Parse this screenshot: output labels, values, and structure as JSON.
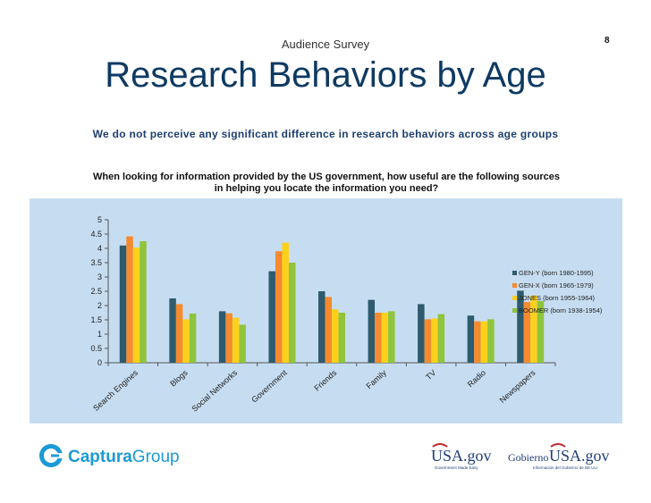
{
  "page_number": "8",
  "kicker": "Audience Survey",
  "title": "Research Behaviors by Age",
  "subtitle": "We do not perceive any significant difference in research behaviors across age groups",
  "question_line1": "When looking for information provided by the US government, how useful are the following sources",
  "question_line2": "in helping you locate the information you need?",
  "chart_data": {
    "type": "bar",
    "categories": [
      "Search Engines",
      "Blogs",
      "Social Networks",
      "Government",
      "Friends",
      "Family",
      "TV",
      "Radio",
      "Newspapers"
    ],
    "series": [
      {
        "name": "GEN-Y (born 1980-1995)",
        "color": "#2e5b6e",
        "values": [
          4.1,
          2.25,
          1.8,
          3.2,
          2.5,
          2.2,
          2.05,
          1.65,
          2.52
        ]
      },
      {
        "name": "GEN-X (born 1965-1979)",
        "color": "#f58a2e",
        "values": [
          4.42,
          2.05,
          1.73,
          3.9,
          2.3,
          1.75,
          1.52,
          1.45,
          2.12
        ]
      },
      {
        "name": "JONES (born 1955-1964)",
        "color": "#fcd11c",
        "values": [
          4.03,
          1.52,
          1.57,
          4.2,
          1.87,
          1.75,
          1.55,
          1.45,
          2.35
        ]
      },
      {
        "name": "BOOMER (born 1938-1954)",
        "color": "#8fc43c",
        "values": [
          4.25,
          1.72,
          1.33,
          3.5,
          1.75,
          1.8,
          1.7,
          1.52,
          2.16
        ]
      }
    ],
    "y_ticks": [
      "0",
      "0.5",
      "1",
      "1.5",
      "2",
      "2.5",
      "3",
      "3.5",
      "4",
      "4.5",
      "5"
    ],
    "ylim": [
      0,
      5
    ],
    "grid": false,
    "legend_position": "right",
    "background": "#c6ddf1"
  },
  "footer": {
    "left_logo_bold": "Captura",
    "left_logo_light": "Group",
    "left_logo_color": "#1c9ad6",
    "usa_logo": "USA.gov",
    "usa_sub": "Government Made Easy",
    "gobierno_prefix": "Gobierno",
    "gobierno_logo": "USA.gov",
    "gobierno_sub": "Información del Gobierno de EE.UU."
  }
}
